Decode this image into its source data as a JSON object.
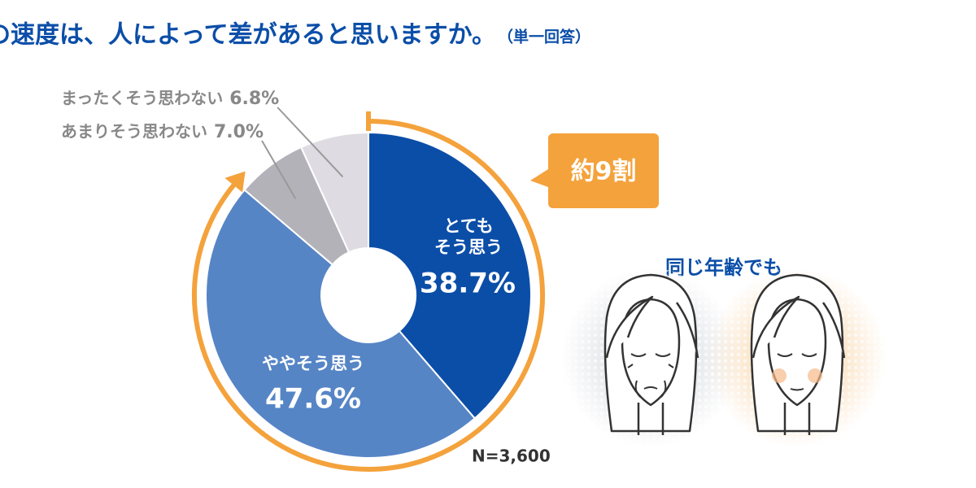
{
  "chart_data": {
    "type": "donut",
    "title": "老化の速度は、人によって差があると思いますか。",
    "subtitle": "（単一回答）",
    "categories": [
      "とても\nそう思う",
      "ややそう思う",
      "あまりそう思わない",
      "まったくそう思わない"
    ],
    "values": [
      38.7,
      47.6,
      7.0,
      6.8
    ],
    "value_labels": [
      "38.7%",
      "47.6%",
      "7.0%",
      "6.8%"
    ],
    "colors": [
      "#0b4ea8",
      "#5685c6",
      "#b4b2b9",
      "#dedce2"
    ],
    "callout": "約9割",
    "sample_size": "N=3,600",
    "caption": "同じ年齢でも"
  }
}
